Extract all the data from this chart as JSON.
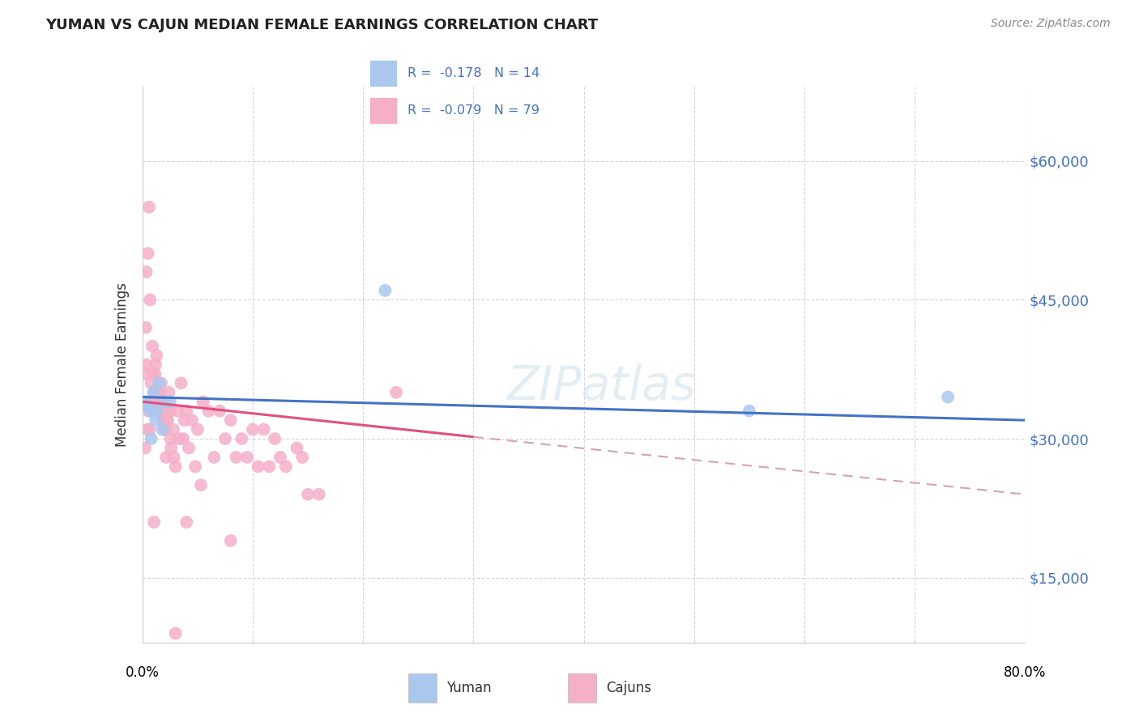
{
  "title": "YUMAN VS CAJUN MEDIAN FEMALE EARNINGS CORRELATION CHART",
  "source": "Source: ZipAtlas.com",
  "ylabel": "Median Female Earnings",
  "yticks": [
    15000,
    30000,
    45000,
    60000
  ],
  "ytick_labels": [
    "$15,000",
    "$30,000",
    "$45,000",
    "$60,000"
  ],
  "xlim": [
    0.0,
    80.0
  ],
  "ylim": [
    8000,
    68000
  ],
  "yuman_color": "#aac8ee",
  "cajun_color": "#f5b0c8",
  "trend_blue": "#4472c4",
  "trend_pink": "#e05080",
  "trend_dashed_color": "#d8a0b8",
  "watermark": "ZIPatlas",
  "blue_line_x0": 0.0,
  "blue_line_y0": 34500,
  "blue_line_x1": 80.0,
  "blue_line_y1": 32000,
  "pink_solid_x0": 0.0,
  "pink_solid_y0": 34000,
  "pink_solid_x1": 30.0,
  "pink_solid_y1": 30200,
  "pink_dashed_x0": 30.0,
  "pink_dashed_y0": 30200,
  "pink_dashed_x1": 80.0,
  "pink_dashed_y1": 24000,
  "yuman_points_x": [
    0.3,
    0.5,
    0.7,
    1.0,
    1.2,
    1.5,
    1.8,
    2.0,
    2.5,
    22.0,
    55.0,
    73.0,
    0.8,
    1.3
  ],
  "yuman_points_y": [
    34000,
    33500,
    33000,
    35000,
    32000,
    36000,
    31000,
    34000,
    34000,
    46000,
    33000,
    34500,
    30000,
    33000
  ],
  "cajun_points_x": [
    0.2,
    0.3,
    0.4,
    0.5,
    0.6,
    0.7,
    0.8,
    0.9,
    1.0,
    1.1,
    1.2,
    1.3,
    1.4,
    1.5,
    1.6,
    1.7,
    1.8,
    1.9,
    2.0,
    2.1,
    2.2,
    2.3,
    2.4,
    2.5,
    2.6,
    2.8,
    3.0,
    3.2,
    3.5,
    3.8,
    4.0,
    4.5,
    5.0,
    5.5,
    6.0,
    7.0,
    8.0,
    9.0,
    10.0,
    11.0,
    12.0,
    13.0,
    14.0,
    15.0,
    16.0,
    0.35,
    0.55,
    0.75,
    0.95,
    1.15,
    1.35,
    1.55,
    1.75,
    2.05,
    2.25,
    2.55,
    2.85,
    3.3,
    3.7,
    4.2,
    4.8,
    5.3,
    6.5,
    7.5,
    8.5,
    9.5,
    10.5,
    11.5,
    12.5,
    14.5,
    4.0,
    8.0,
    23.0,
    0.25,
    0.45,
    0.65,
    1.05,
    2.15,
    3.0
  ],
  "cajun_points_y": [
    37000,
    42000,
    38000,
    50000,
    55000,
    45000,
    36000,
    40000,
    37000,
    35000,
    38000,
    39000,
    34000,
    35000,
    34000,
    36000,
    33000,
    32000,
    34000,
    31000,
    33000,
    32000,
    35000,
    33000,
    29000,
    31000,
    27000,
    33000,
    36000,
    32000,
    33000,
    32000,
    31000,
    34000,
    33000,
    33000,
    32000,
    30000,
    31000,
    31000,
    30000,
    27000,
    29000,
    24000,
    24000,
    48000,
    33000,
    34000,
    34000,
    37000,
    35000,
    35000,
    33000,
    31000,
    32000,
    30000,
    28000,
    30000,
    30000,
    29000,
    27000,
    25000,
    28000,
    30000,
    28000,
    28000,
    27000,
    27000,
    28000,
    28000,
    21000,
    19000,
    35000,
    29000,
    31000,
    31000,
    21000,
    28000,
    9000
  ]
}
